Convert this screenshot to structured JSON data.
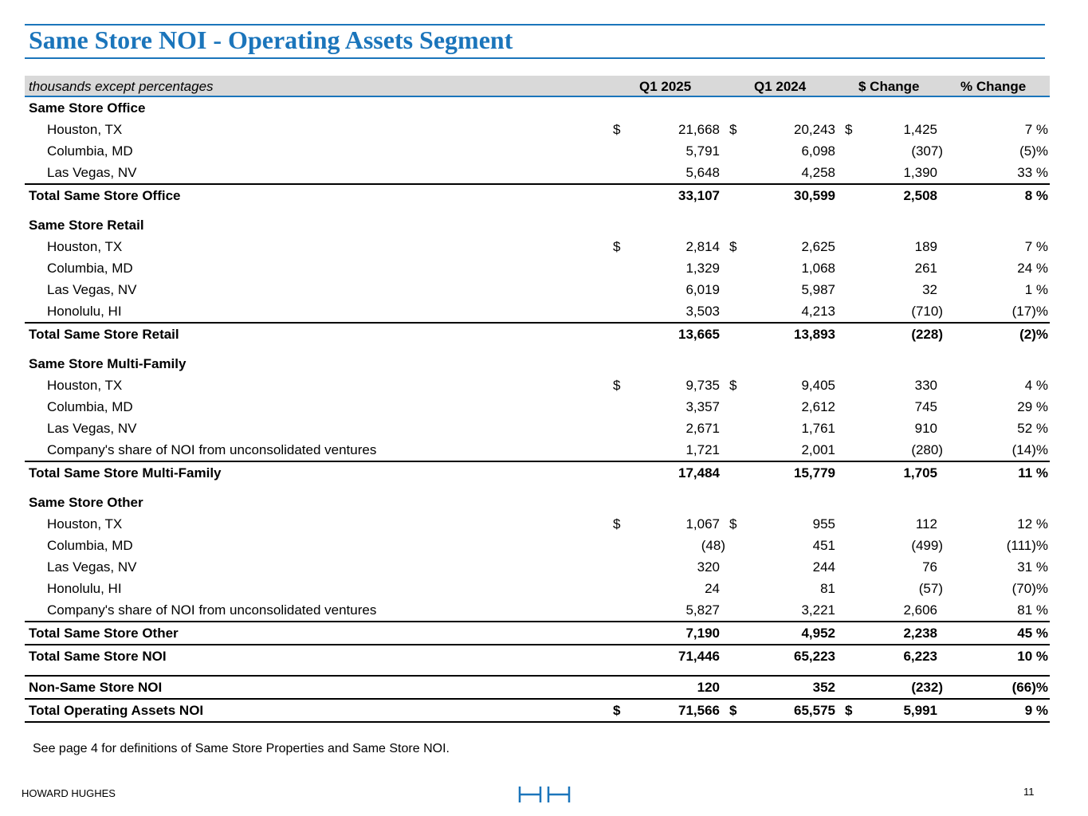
{
  "title": "Same Store NOI - Operating Assets Segment",
  "header": {
    "units": "thousands except percentages",
    "col1": "Q1 2025",
    "col2": "Q1 2024",
    "col3": "$ Change",
    "col4": "% Change"
  },
  "rows": [
    {
      "type": "section",
      "label": "Same Store Office"
    },
    {
      "type": "item",
      "label": "Houston, TX",
      "d1": "$",
      "v1": "21,668",
      "d2": "$",
      "v2": "20,243",
      "d3": "$",
      "v3": "1,425",
      "v4": "7 %"
    },
    {
      "type": "item",
      "label": "Columbia, MD",
      "v1": "5,791",
      "v2": "6,098",
      "v3": "(307)",
      "v4": "(5)%"
    },
    {
      "type": "item",
      "label": "Las Vegas, NV",
      "v1": "5,648",
      "v2": "4,258",
      "v3": "1,390",
      "v4": "33 %"
    },
    {
      "type": "total",
      "label": "Total Same Store Office",
      "v1": "33,107",
      "v2": "30,599",
      "v3": "2,508",
      "v4": "8 %"
    },
    {
      "type": "section",
      "gap": true,
      "label": "Same Store Retail"
    },
    {
      "type": "item",
      "label": "Houston, TX",
      "d1": "$",
      "v1": "2,814",
      "d2": "$",
      "v2": "2,625",
      "v3": "189",
      "v4": "7 %"
    },
    {
      "type": "item",
      "label": "Columbia, MD",
      "v1": "1,329",
      "v2": "1,068",
      "v3": "261",
      "v4": "24 %"
    },
    {
      "type": "item",
      "label": "Las Vegas, NV",
      "v1": "6,019",
      "v2": "5,987",
      "v3": "32",
      "v4": "1 %"
    },
    {
      "type": "item",
      "label": "Honolulu, HI",
      "v1": "3,503",
      "v2": "4,213",
      "v3": "(710)",
      "v4": "(17)%"
    },
    {
      "type": "total",
      "label": "Total Same Store Retail",
      "v1": "13,665",
      "v2": "13,893",
      "v3": "(228)",
      "v4": "(2)%"
    },
    {
      "type": "section",
      "gap": true,
      "label": "Same Store Multi-Family"
    },
    {
      "type": "item",
      "label": "Houston, TX",
      "d1": "$",
      "v1": "9,735",
      "d2": "$",
      "v2": "9,405",
      "v3": "330",
      "v4": "4 %"
    },
    {
      "type": "item",
      "label": "Columbia, MD",
      "v1": "3,357",
      "v2": "2,612",
      "v3": "745",
      "v4": "29 %"
    },
    {
      "type": "item",
      "label": "Las Vegas, NV",
      "v1": "2,671",
      "v2": "1,761",
      "v3": "910",
      "v4": "52 %"
    },
    {
      "type": "item",
      "label": "Company's share of NOI from unconsolidated ventures",
      "v1": "1,721",
      "v2": "2,001",
      "v3": "(280)",
      "v4": "(14)%"
    },
    {
      "type": "total",
      "label": "Total Same Store Multi-Family",
      "v1": "17,484",
      "v2": "15,779",
      "v3": "1,705",
      "v4": "11 %"
    },
    {
      "type": "section",
      "gap": true,
      "label": "Same Store Other"
    },
    {
      "type": "item",
      "label": "Houston, TX",
      "d1": "$",
      "v1": "1,067",
      "d2": "$",
      "v2": "955",
      "v3": "112",
      "v4": "12 %"
    },
    {
      "type": "item",
      "label": "Columbia, MD",
      "v1": "(48)",
      "v2": "451",
      "v3": "(499)",
      "v4": "(111)%"
    },
    {
      "type": "item",
      "label": "Las Vegas, NV",
      "v1": "320",
      "v2": "244",
      "v3": "76",
      "v4": "31 %"
    },
    {
      "type": "item",
      "label": "Honolulu, HI",
      "v1": "24",
      "v2": "81",
      "v3": "(57)",
      "v4": "(70)%"
    },
    {
      "type": "item",
      "label": "Company's share of NOI from unconsolidated ventures",
      "v1": "5,827",
      "v2": "3,221",
      "v3": "2,606",
      "v4": "81 %"
    },
    {
      "type": "total",
      "label": "Total Same Store Other",
      "v1": "7,190",
      "v2": "4,952",
      "v3": "2,238",
      "v4": "45 %"
    },
    {
      "type": "total",
      "label": "Total Same Store NOI",
      "v1": "71,446",
      "v2": "65,223",
      "v3": "6,223",
      "v4": "10 %"
    },
    {
      "type": "total",
      "gap": true,
      "label": "Non-Same Store NOI",
      "v1": "120",
      "v2": "352",
      "v3": "(232)",
      "v4": "(66)%"
    },
    {
      "type": "total",
      "last": true,
      "label": "Total Operating Assets NOI",
      "d1": "$",
      "v1": "71,566",
      "d2": "$",
      "v2": "65,575",
      "d3": "$",
      "v3": "5,991",
      "v4": "9 %"
    }
  ],
  "footnote": "See page 4 for definitions of Same Store Properties and Same Store NOI.",
  "footer": {
    "brand": "HOWARD HUGHES",
    "page_number": "11",
    "logo_icon": "hh-logo-icon"
  },
  "colors": {
    "accent": "#1b75bb",
    "header_bg": "#d9d9d9"
  }
}
